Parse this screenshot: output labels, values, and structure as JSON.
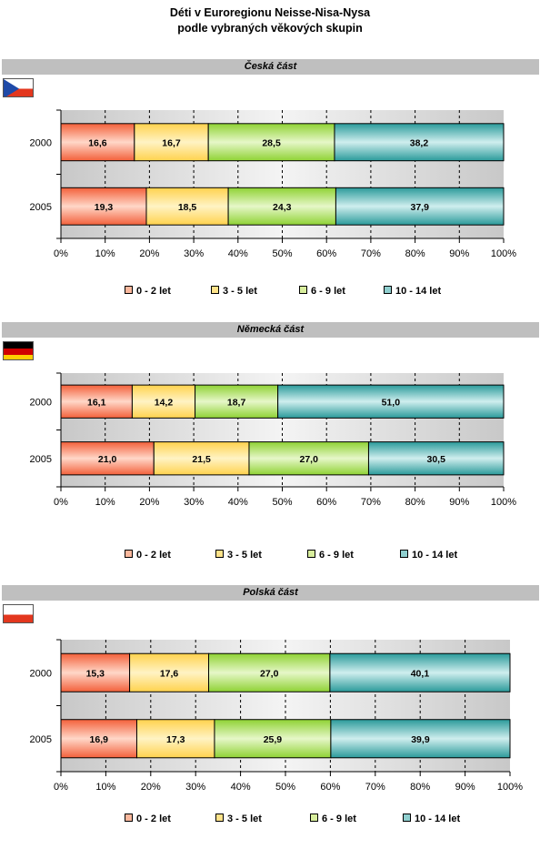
{
  "title_line1": "Déti v Euroregionu Neisse-Nisa-Nysa",
  "title_line2": "podle vybraných věkových skupin",
  "colors": {
    "series": [
      "#f3603a",
      "#ffd24d",
      "#8fd234",
      "#2a9a9a"
    ],
    "series_light": [
      "#ffd7c8",
      "#fff3c4",
      "#e6f7c8",
      "#cfeeee"
    ],
    "legend_swatch": [
      "#fbb89d",
      "#ffe38a",
      "#d8ee9d",
      "#8fcfcf"
    ]
  },
  "chart_data": [
    {
      "type": "bar",
      "orientation": "horizontal",
      "stacked": true,
      "section_title": "Česká část",
      "flag": "cz-flag-icon",
      "categories": [
        "2000",
        "2005"
      ],
      "series": [
        {
          "name": "0 - 2 let",
          "values": [
            16.6,
            19.3
          ],
          "labels": [
            "16,6",
            "19,3"
          ]
        },
        {
          "name": "3 - 5 let",
          "values": [
            16.7,
            18.5
          ],
          "labels": [
            "16,7",
            "18,5"
          ]
        },
        {
          "name": "6 - 9 let",
          "values": [
            28.5,
            24.3
          ],
          "labels": [
            "28,5",
            "24,3"
          ]
        },
        {
          "name": "10 - 14 let",
          "values": [
            38.2,
            37.9
          ],
          "labels": [
            "38,2",
            "37,9"
          ]
        }
      ],
      "x_ticks": [
        "0%",
        "10%",
        "20%",
        "30%",
        "40%",
        "50%",
        "60%",
        "70%",
        "80%",
        "90%",
        "100%"
      ],
      "xlim": [
        0,
        100
      ],
      "grid": true,
      "legend_position": "bottom"
    },
    {
      "type": "bar",
      "orientation": "horizontal",
      "stacked": true,
      "section_title": "Německá část",
      "flag": "de-flag-icon",
      "categories": [
        "2000",
        "2005"
      ],
      "series": [
        {
          "name": "0 - 2 let",
          "values": [
            16.1,
            21.0
          ],
          "labels": [
            "16,1",
            "21,0"
          ]
        },
        {
          "name": "3 - 5 let",
          "values": [
            14.2,
            21.5
          ],
          "labels": [
            "14,2",
            "21,5"
          ]
        },
        {
          "name": "6 - 9 let",
          "values": [
            18.7,
            27.0
          ],
          "labels": [
            "18,7",
            "27,0"
          ]
        },
        {
          "name": "10 - 14 let",
          "values": [
            51.0,
            30.5
          ],
          "labels": [
            "51,0",
            "30,5"
          ]
        }
      ],
      "x_ticks": [
        "0%",
        "10%",
        "20%",
        "30%",
        "40%",
        "50%",
        "60%",
        "70%",
        "80%",
        "90%",
        "100%"
      ],
      "xlim": [
        0,
        100
      ],
      "grid": true,
      "legend_position": "bottom"
    },
    {
      "type": "bar",
      "orientation": "horizontal",
      "stacked": true,
      "section_title": "Polská část",
      "flag": "pl-flag-icon",
      "categories": [
        "2000",
        "2005"
      ],
      "series": [
        {
          "name": "0 - 2 let",
          "values": [
            15.3,
            16.9
          ],
          "labels": [
            "15,3",
            "16,9"
          ]
        },
        {
          "name": "3 - 5 let",
          "values": [
            17.6,
            17.3
          ],
          "labels": [
            "17,6",
            "17,3"
          ]
        },
        {
          "name": "6 - 9 let",
          "values": [
            27.0,
            25.9
          ],
          "labels": [
            "27,0",
            "25,9"
          ]
        },
        {
          "name": "10 - 14 let",
          "values": [
            40.1,
            39.9
          ],
          "labels": [
            "40,1",
            "39,9"
          ]
        }
      ],
      "x_ticks": [
        "0%",
        "10%",
        "20%",
        "30%",
        "40%",
        "50%",
        "60%",
        "70%",
        "80%",
        "90%",
        "100%"
      ],
      "xlim": [
        0,
        100
      ],
      "grid": true,
      "legend_position": "bottom"
    }
  ]
}
